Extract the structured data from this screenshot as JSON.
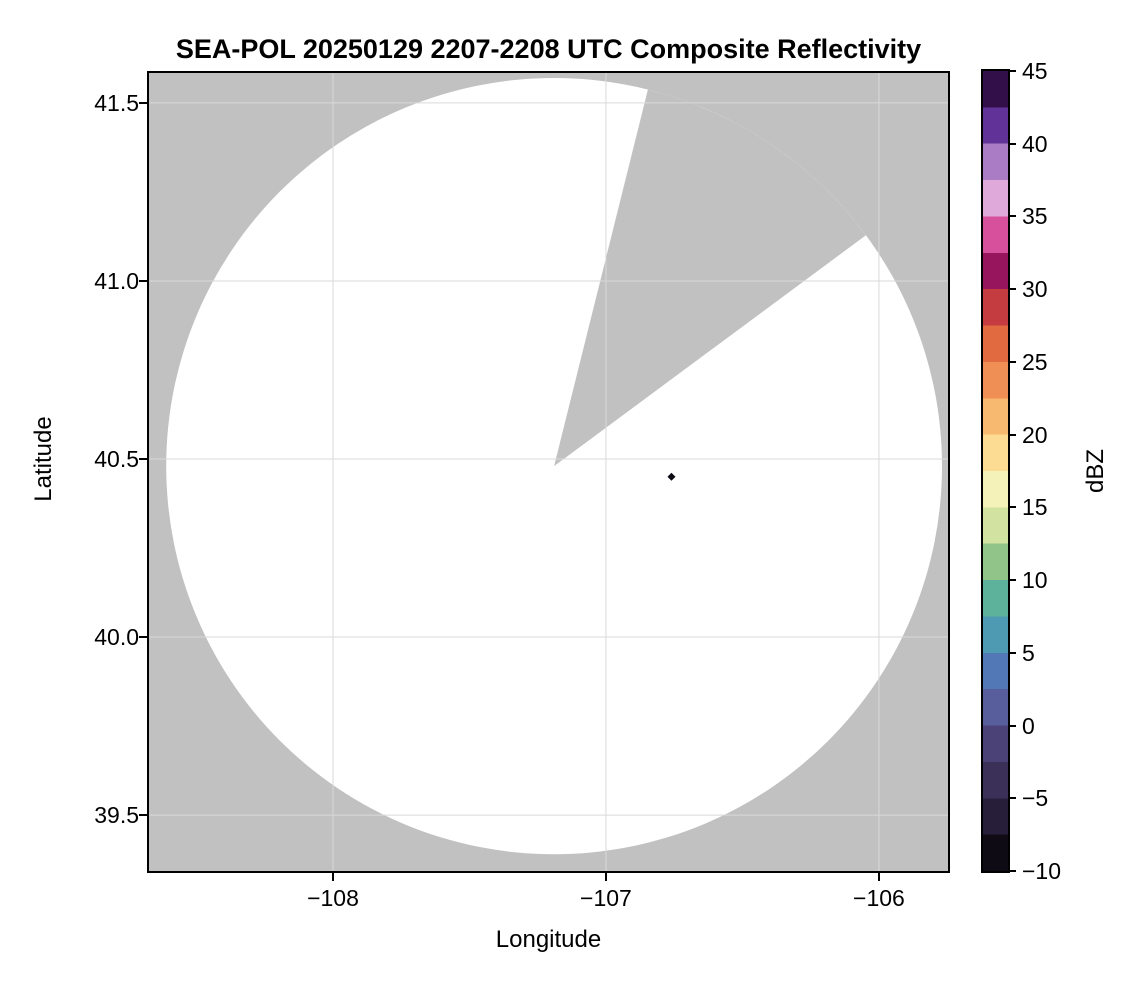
{
  "chart_data": {
    "type": "radar_ppi_composite",
    "title": "SEA-POL 20250129 2207-2208 UTC Composite Reflectivity",
    "xlabel": "Longitude",
    "ylabel": "Latitude",
    "xlim": [
      -108.674,
      -105.747
    ],
    "ylim": [
      39.343,
      41.584
    ],
    "grid": true,
    "xticks": [
      {
        "value": -108,
        "label": "−108"
      },
      {
        "value": -107,
        "label": "−107"
      },
      {
        "value": -106,
        "label": "−106"
      }
    ],
    "yticks": [
      {
        "value": 41.5,
        "label": "41.5"
      },
      {
        "value": 41.0,
        "label": "41.0"
      },
      {
        "value": 40.5,
        "label": "40.5"
      },
      {
        "value": 40.0,
        "label": "40.0"
      },
      {
        "value": 39.5,
        "label": "39.5"
      }
    ],
    "radar": {
      "center_lon": -107.19,
      "center_lat": 40.48,
      "range_lon_deg": 1.421,
      "range_lat_deg": 1.09,
      "missing_sector_azimuth_start_deg": 14,
      "missing_sector_azimuth_end_deg": 53.5
    },
    "echoes": [
      {
        "lon": -106.76,
        "lat": 40.45,
        "dbz": -8
      }
    ],
    "colorbar": {
      "label": "dBZ",
      "min": -10,
      "max": 45,
      "ticks": [
        {
          "value": 45,
          "label": "45"
        },
        {
          "value": 40,
          "label": "40"
        },
        {
          "value": 35,
          "label": "35"
        },
        {
          "value": 30,
          "label": "30"
        },
        {
          "value": 25,
          "label": "25"
        },
        {
          "value": 20,
          "label": "20"
        },
        {
          "value": 15,
          "label": "15"
        },
        {
          "value": 10,
          "label": "10"
        },
        {
          "value": 5,
          "label": "5"
        },
        {
          "value": 0,
          "label": "0"
        },
        {
          "value": -5,
          "label": "−5"
        },
        {
          "value": -10,
          "label": "−10"
        }
      ],
      "bands": [
        {
          "min": 42.5,
          "max": 45.0,
          "color": "#330f4a"
        },
        {
          "min": 40.0,
          "max": 42.5,
          "color": "#613297"
        },
        {
          "min": 37.5,
          "max": 40.0,
          "color": "#a97cc5"
        },
        {
          "min": 35.0,
          "max": 37.5,
          "color": "#dfaad9"
        },
        {
          "min": 32.5,
          "max": 35.0,
          "color": "#d6509c"
        },
        {
          "min": 30.0,
          "max": 32.5,
          "color": "#96155c"
        },
        {
          "min": 27.5,
          "max": 30.0,
          "color": "#c43c40"
        },
        {
          "min": 25.0,
          "max": 27.5,
          "color": "#e16a41"
        },
        {
          "min": 22.5,
          "max": 25.0,
          "color": "#ef8f55"
        },
        {
          "min": 20.0,
          "max": 22.5,
          "color": "#f6b96f"
        },
        {
          "min": 17.5,
          "max": 20.0,
          "color": "#fbdc92"
        },
        {
          "min": 15.0,
          "max": 17.5,
          "color": "#f5f2b9"
        },
        {
          "min": 12.5,
          "max": 15.0,
          "color": "#d2e2a0"
        },
        {
          "min": 10.0,
          "max": 12.5,
          "color": "#90c489"
        },
        {
          "min": 7.5,
          "max": 10.0,
          "color": "#5cb29b"
        },
        {
          "min": 5.0,
          "max": 7.5,
          "color": "#4e9ab2"
        },
        {
          "min": 2.5,
          "max": 5.0,
          "color": "#5378b6"
        },
        {
          "min": 0.0,
          "max": 2.5,
          "color": "#585e9c"
        },
        {
          "min": -2.5,
          "max": 0.0,
          "color": "#4b4377"
        },
        {
          "min": -5.0,
          "max": -2.5,
          "color": "#3a3058"
        },
        {
          "min": -7.5,
          "max": -5.0,
          "color": "#271f3a"
        },
        {
          "min": -10.0,
          "max": -7.5,
          "color": "#0e0b14"
        }
      ]
    },
    "colors": {
      "no_data": "#c1c1c1",
      "coverage": "#ffffff",
      "grid": "#d9d9d9",
      "frame": "#000000"
    }
  }
}
